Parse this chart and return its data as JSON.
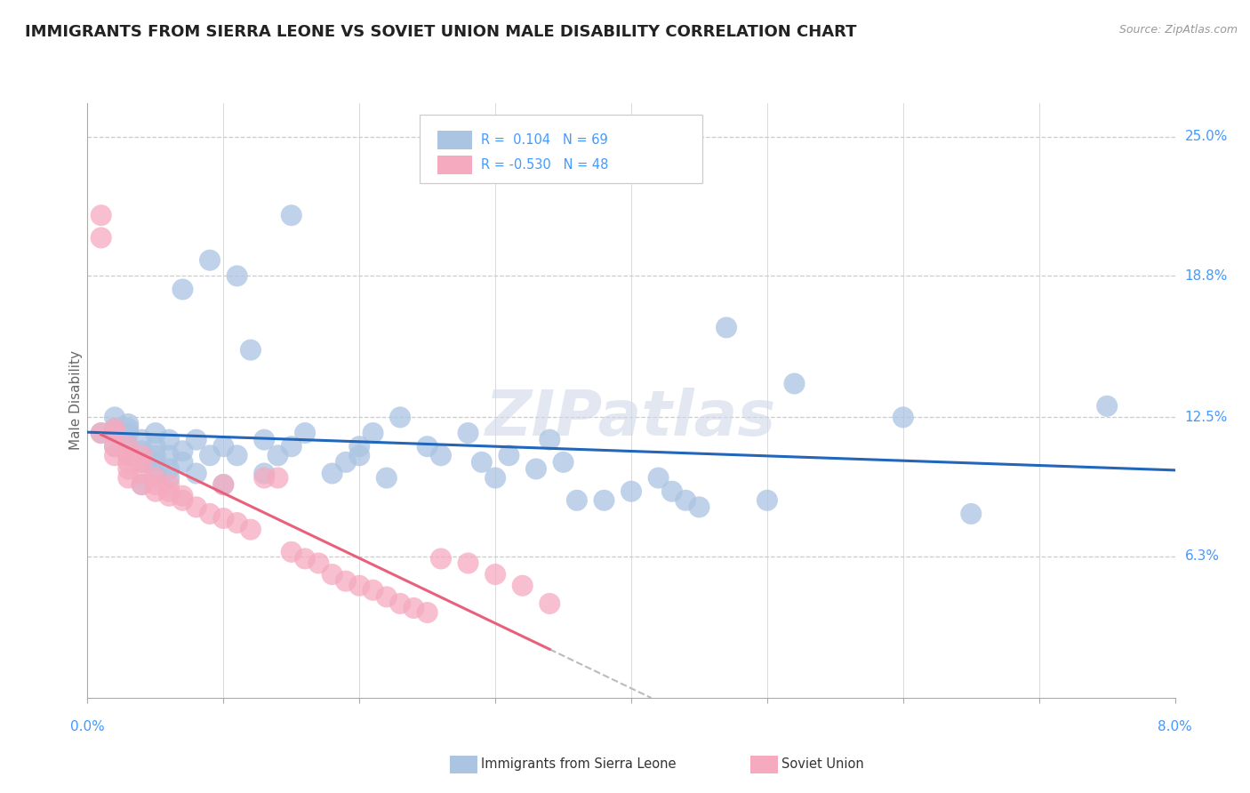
{
  "title": "IMMIGRANTS FROM SIERRA LEONE VS SOVIET UNION MALE DISABILITY CORRELATION CHART",
  "source": "Source: ZipAtlas.com",
  "ylabel": "Male Disability",
  "yticks": [
    0.063,
    0.125,
    0.188,
    0.25
  ],
  "ytick_labels": [
    "6.3%",
    "12.5%",
    "18.8%",
    "25.0%"
  ],
  "xlim": [
    0.0,
    0.08
  ],
  "ylim": [
    0.0,
    0.265
  ],
  "sierra_leone_R": 0.104,
  "sierra_leone_N": 69,
  "soviet_union_R": -0.53,
  "soviet_union_N": 48,
  "sierra_leone_color": "#aac4e2",
  "soviet_union_color": "#f5aabf",
  "sierra_leone_line_color": "#2266bb",
  "soviet_union_line_color": "#e8607a",
  "background_color": "#ffffff",
  "grid_color": "#cccccc",
  "title_color": "#222222",
  "right_label_color": "#4499ff",
  "watermark": "ZIPatlas",
  "sierra_leone_x": [
    0.001,
    0.002,
    0.002,
    0.002,
    0.003,
    0.003,
    0.003,
    0.003,
    0.003,
    0.004,
    0.004,
    0.004,
    0.004,
    0.005,
    0.005,
    0.005,
    0.005,
    0.005,
    0.006,
    0.006,
    0.006,
    0.006,
    0.007,
    0.007,
    0.007,
    0.008,
    0.008,
    0.009,
    0.009,
    0.01,
    0.01,
    0.011,
    0.011,
    0.012,
    0.013,
    0.013,
    0.014,
    0.015,
    0.015,
    0.016,
    0.018,
    0.019,
    0.02,
    0.02,
    0.021,
    0.022,
    0.023,
    0.025,
    0.026,
    0.028,
    0.029,
    0.03,
    0.031,
    0.033,
    0.034,
    0.035,
    0.036,
    0.038,
    0.04,
    0.042,
    0.043,
    0.044,
    0.045,
    0.047,
    0.05,
    0.052,
    0.06,
    0.065,
    0.075
  ],
  "sierra_leone_y": [
    0.118,
    0.112,
    0.12,
    0.125,
    0.108,
    0.112,
    0.118,
    0.12,
    0.122,
    0.095,
    0.105,
    0.11,
    0.115,
    0.1,
    0.105,
    0.108,
    0.112,
    0.118,
    0.098,
    0.102,
    0.108,
    0.115,
    0.105,
    0.11,
    0.182,
    0.1,
    0.115,
    0.108,
    0.195,
    0.095,
    0.112,
    0.108,
    0.188,
    0.155,
    0.1,
    0.115,
    0.108,
    0.215,
    0.112,
    0.118,
    0.1,
    0.105,
    0.108,
    0.112,
    0.118,
    0.098,
    0.125,
    0.112,
    0.108,
    0.118,
    0.105,
    0.098,
    0.108,
    0.102,
    0.115,
    0.105,
    0.088,
    0.088,
    0.092,
    0.098,
    0.092,
    0.088,
    0.085,
    0.165,
    0.088,
    0.14,
    0.125,
    0.082,
    0.13
  ],
  "soviet_union_x": [
    0.001,
    0.001,
    0.001,
    0.002,
    0.002,
    0.002,
    0.002,
    0.003,
    0.003,
    0.003,
    0.003,
    0.003,
    0.004,
    0.004,
    0.004,
    0.004,
    0.005,
    0.005,
    0.005,
    0.006,
    0.006,
    0.006,
    0.007,
    0.007,
    0.008,
    0.009,
    0.01,
    0.01,
    0.011,
    0.012,
    0.013,
    0.014,
    0.015,
    0.016,
    0.017,
    0.018,
    0.019,
    0.02,
    0.021,
    0.022,
    0.023,
    0.024,
    0.025,
    0.026,
    0.028,
    0.03,
    0.032,
    0.034
  ],
  "soviet_union_y": [
    0.215,
    0.205,
    0.118,
    0.108,
    0.112,
    0.118,
    0.12,
    0.098,
    0.102,
    0.105,
    0.108,
    0.112,
    0.095,
    0.1,
    0.105,
    0.108,
    0.092,
    0.095,
    0.098,
    0.09,
    0.092,
    0.095,
    0.088,
    0.09,
    0.085,
    0.082,
    0.08,
    0.095,
    0.078,
    0.075,
    0.098,
    0.098,
    0.065,
    0.062,
    0.06,
    0.055,
    0.052,
    0.05,
    0.048,
    0.045,
    0.042,
    0.04,
    0.038,
    0.062,
    0.06,
    0.055,
    0.05,
    0.042
  ]
}
